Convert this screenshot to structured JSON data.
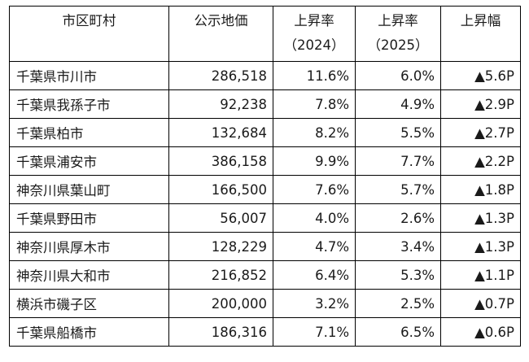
{
  "table": {
    "headers": [
      {
        "line1": "市区町村",
        "line2": ""
      },
      {
        "line1": "公示地価",
        "line2": ""
      },
      {
        "line1": "上昇率",
        "line2": "（2024）"
      },
      {
        "line1": "上昇率",
        "line2": "（2025）"
      },
      {
        "line1": "上昇幅",
        "line2": ""
      }
    ],
    "rows": [
      {
        "municipality": "千葉県市川市",
        "price": "286,518",
        "rate_2024": "11.6%",
        "rate_2025": "6.0%",
        "change": "▲5.6P"
      },
      {
        "municipality": "千葉県我孫子市",
        "price": "92,238",
        "rate_2024": "7.8%",
        "rate_2025": "4.9%",
        "change": "▲2.9P"
      },
      {
        "municipality": "千葉県柏市",
        "price": "132,684",
        "rate_2024": "8.2%",
        "rate_2025": "5.5%",
        "change": "▲2.7P"
      },
      {
        "municipality": "千葉県浦安市",
        "price": "386,158",
        "rate_2024": "9.9%",
        "rate_2025": "7.7%",
        "change": "▲2.2P"
      },
      {
        "municipality": "神奈川県葉山町",
        "price": "166,500",
        "rate_2024": "7.6%",
        "rate_2025": "5.7%",
        "change": "▲1.8P"
      },
      {
        "municipality": "千葉県野田市",
        "price": "56,007",
        "rate_2024": "4.0%",
        "rate_2025": "2.6%",
        "change": "▲1.3P"
      },
      {
        "municipality": "神奈川県厚木市",
        "price": "128,229",
        "rate_2024": "4.7%",
        "rate_2025": "3.4%",
        "change": "▲1.3P"
      },
      {
        "municipality": "神奈川県大和市",
        "price": "216,852",
        "rate_2024": "6.4%",
        "rate_2025": "5.3%",
        "change": "▲1.1P"
      },
      {
        "municipality": "横浜市磯子区",
        "price": "200,000",
        "rate_2024": "3.2%",
        "rate_2025": "2.5%",
        "change": "▲0.7P"
      },
      {
        "municipality": "千葉県船橋市",
        "price": "186,316",
        "rate_2024": "7.1%",
        "rate_2025": "6.5%",
        "change": "▲0.6P"
      }
    ]
  }
}
